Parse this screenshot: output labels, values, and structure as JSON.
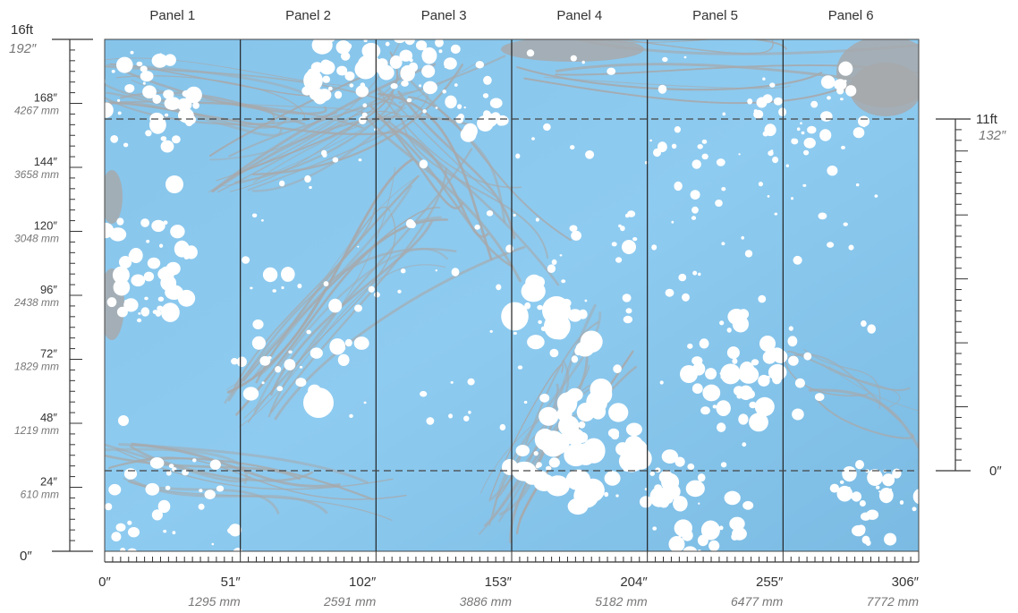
{
  "panels": {
    "labels": [
      "Panel 1",
      "Panel 2",
      "Panel 3",
      "Panel 4",
      "Panel 5",
      "Panel 6"
    ]
  },
  "left_ruler": {
    "top_label": "16ft",
    "top_label_sub": "192″",
    "marks": [
      {
        "inches": 168,
        "main": "168″",
        "sub": "4267 mm"
      },
      {
        "inches": 144,
        "main": "144″",
        "sub": "3658 mm"
      },
      {
        "inches": 120,
        "main": "120″",
        "sub": "3048 mm"
      },
      {
        "inches": 96,
        "main": "96″",
        "sub": "2438 mm"
      },
      {
        "inches": 72,
        "main": "72″",
        "sub": "1829 mm"
      },
      {
        "inches": 48,
        "main": "48″",
        "sub": "1219 mm"
      },
      {
        "inches": 24,
        "main": "24″",
        "sub": "610 mm"
      }
    ],
    "zero_label": "0″"
  },
  "bottom_ruler": {
    "marks": [
      {
        "inches": 0,
        "main": "0″",
        "sub": ""
      },
      {
        "inches": 51,
        "main": "51″",
        "sub": "1295 mm"
      },
      {
        "inches": 102,
        "main": "102″",
        "sub": "2591 mm"
      },
      {
        "inches": 153,
        "main": "153″",
        "sub": "3886 mm"
      },
      {
        "inches": 204,
        "main": "204″",
        "sub": "5182 mm"
      },
      {
        "inches": 255,
        "main": "255″",
        "sub": "6477 mm"
      },
      {
        "inches": 306,
        "main": "306″",
        "sub": "7772 mm"
      }
    ]
  },
  "right_ruler": {
    "top_label": "11ft",
    "top_label_sub": "132″",
    "zero_label": "0″"
  },
  "colors": {
    "water": "#7fbfe6",
    "water_light": "#9ccff0",
    "marble_gray": "#a7a9ab",
    "foam": "#ffffff",
    "panel_divider": "#222222",
    "ruler": "#333333",
    "dashed": "#444444"
  }
}
